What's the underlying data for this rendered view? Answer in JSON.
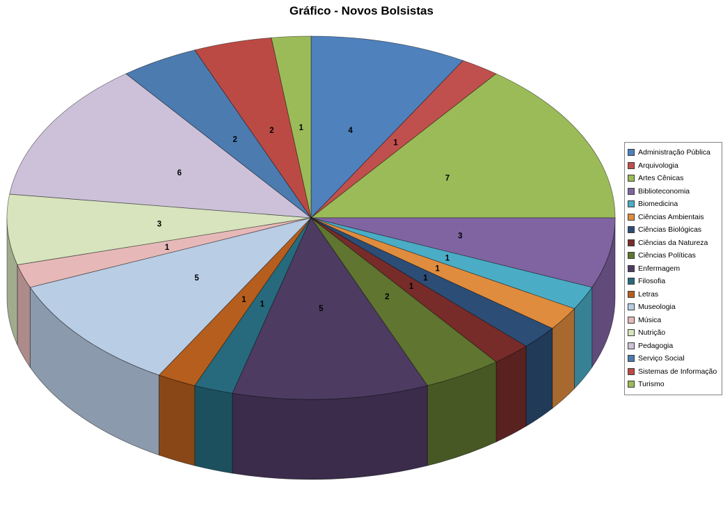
{
  "title": "Gráfico - Novos Bolsistas",
  "chart_data": {
    "type": "pie",
    "style": "3d",
    "title": "Gráfico - Novos Bolsistas",
    "start_angle_deg": 0,
    "direction": "clockwise",
    "legend_position": "right",
    "data_labels": "value",
    "labels": [
      "Administração Pública",
      "Arquivologia",
      "Artes Cênicas",
      "Biblioteconomia",
      "Biomedicina",
      "Ciências Ambientais",
      "Ciências Biológicas",
      "Ciências da Natureza",
      "Ciências Políticas",
      "Enfermagem",
      "Filosofia",
      "Letras",
      "Museologia",
      "Música",
      "Nutrição",
      "Pedagogia",
      "Serviço Social",
      "Sistemas de Informação",
      "Turismo"
    ],
    "values": [
      4,
      1,
      7,
      3,
      1,
      1,
      1,
      1,
      2,
      5,
      1,
      1,
      5,
      1,
      3,
      6,
      2,
      2,
      1
    ],
    "colors": [
      "#4F81BD",
      "#C0504D",
      "#9BBB59",
      "#8064A2",
      "#4BACC6",
      "#DF8C3E",
      "#2C4D75",
      "#772C2A",
      "#5F7530",
      "#4D3B62",
      "#276A7D",
      "#B65E1E",
      "#B9CDE5",
      "#E6B9B8",
      "#D7E4BD",
      "#CCC1D9",
      "#4C7BB0",
      "#BC4A44",
      "#9BBB59"
    ]
  },
  "colors": {
    "background": "#FFFFFF",
    "text": "#000000",
    "legend_border": "#848484"
  }
}
